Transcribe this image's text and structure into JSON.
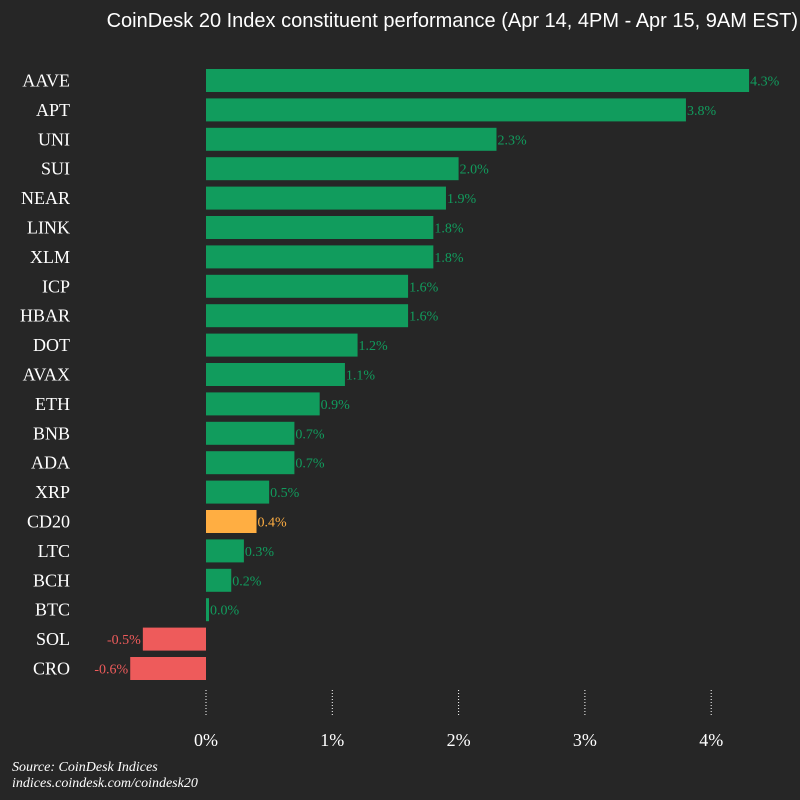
{
  "chart_data": {
    "type": "bar",
    "orientation": "horizontal",
    "title": "CoinDesk 20 Index constituent performance (Apr 14, 4PM - Apr 15, 9AM EST)",
    "categories": [
      "AAVE",
      "APT",
      "UNI",
      "SUI",
      "NEAR",
      "LINK",
      "XLM",
      "ICP",
      "HBAR",
      "DOT",
      "AVAX",
      "ETH",
      "BNB",
      "ADA",
      "XRP",
      "CD20",
      "LTC",
      "BCH",
      "BTC",
      "SOL",
      "CRO"
    ],
    "values": [
      4.3,
      3.8,
      2.3,
      2.0,
      1.9,
      1.8,
      1.8,
      1.6,
      1.6,
      1.2,
      1.1,
      0.9,
      0.7,
      0.7,
      0.5,
      0.4,
      0.3,
      0.2,
      0.0,
      -0.5,
      -0.6
    ],
    "data_labels": [
      "4.3%",
      "3.8%",
      "2.3%",
      "2.0%",
      "1.9%",
      "1.8%",
      "1.8%",
      "1.6%",
      "1.6%",
      "1.2%",
      "1.1%",
      "0.9%",
      "0.7%",
      "0.7%",
      "0.5%",
      "0.4%",
      "0.3%",
      "0.2%",
      "0.0%",
      "-0.5%",
      "-0.6%"
    ],
    "xticks": [
      0,
      1,
      2,
      3,
      4
    ],
    "xtick_labels": [
      "0%",
      "1%",
      "2%",
      "3%",
      "4%"
    ],
    "xlim": [
      -0.65,
      4.5
    ],
    "highlight_category": "CD20",
    "colors": {
      "positive": "#119c5d",
      "negative": "#ee5b5b",
      "highlight": "#ffae42",
      "background": "#262626",
      "text": "#ffffff"
    }
  },
  "source": {
    "line1": "Source: CoinDesk Indices",
    "line2": "indices.coindesk.com/coindesk20"
  }
}
